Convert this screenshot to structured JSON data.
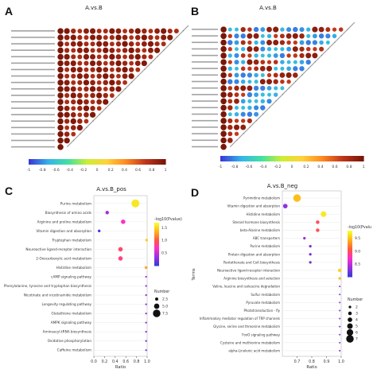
{
  "figure": {
    "panels": [
      {
        "id": "A",
        "title": "A.vs.B"
      },
      {
        "id": "B",
        "title": "A.vs.B"
      },
      {
        "id": "C",
        "title": "A.vs.B_pos"
      },
      {
        "id": "D",
        "title": "A.vs.B_neg"
      }
    ]
  },
  "chart_data": [
    {
      "panel": "A",
      "type": "heatmap",
      "title": "A.vs.B",
      "description": "triangular correlation matrix, circles; nearly all strongly positive (red)",
      "rows": 19,
      "colorbar_ticks": [
        "-1",
        "-0.8",
        "-0.6",
        "-0.4",
        "-0.2",
        "0",
        "0.2",
        "0.4",
        "0.6",
        "0.8",
        "1"
      ],
      "colorscale": [
        "#3b3bd9",
        "#35b6e8",
        "#42e0a0",
        "#ccee33",
        "#ffd23a",
        "#ff8a1f",
        "#c0361b",
        "#7a1608"
      ],
      "value_range": [
        -1,
        1
      ]
    },
    {
      "panel": "B",
      "type": "heatmap",
      "title": "A.vs.B",
      "description": "triangular correlation matrix, circles; mixed positive and negative blocks",
      "rows": 19,
      "colorbar_ticks": [
        "-1",
        "-0.8",
        "-0.6",
        "-0.4",
        "-0.2",
        "0",
        "0.2",
        "0.4",
        "0.6",
        "0.8",
        "1"
      ],
      "value_range": [
        -1,
        1
      ]
    },
    {
      "panel": "C",
      "type": "scatter",
      "title": "A.vs.B_pos",
      "xlabel": "Ratio",
      "ylabel": "",
      "xlim": [
        0,
        1
      ],
      "xticks": [
        "0.0",
        "0.2",
        "0.4",
        "0.6",
        "0.8",
        "1.0"
      ],
      "categories": [
        "Purine metabolism",
        "Biosynthesis of amino acids",
        "Arginine and proline metabolism",
        "Vitamin digestion and absorption",
        "Tryptophan metabolism",
        "Neuroactive ligand-receptor interaction",
        "2-Oxocarboxylic acid metabolism",
        "Histidine metabolism",
        "cAMP signaling pathway",
        "Phenylalanine, tyrosine and tryptophan biosynthesis",
        "Nicotinate and nicotinamide metabolism",
        "Longevity regulating pathway",
        "Glutathione metabolism",
        "AMPK signaling pathway",
        "Aminoacyl-tRNA biosynthesis",
        "Oxidative phosphorylation",
        "Caffeine metabolism"
      ],
      "points": [
        {
          "ratio": 0.78,
          "neglog10p": 1.6,
          "number": 8
        },
        {
          "ratio": 0.25,
          "neglog10p": 0.35,
          "number": 3
        },
        {
          "ratio": 0.55,
          "neglog10p": 0.7,
          "number": 4
        },
        {
          "ratio": 0.1,
          "neglog10p": 0.05,
          "number": 2
        },
        {
          "ratio": 0.99,
          "neglog10p": 1.5,
          "number": 2
        },
        {
          "ratio": 0.5,
          "neglog10p": 0.9,
          "number": 4
        },
        {
          "ratio": 0.5,
          "neglog10p": 0.85,
          "number": 4
        },
        {
          "ratio": 0.98,
          "neglog10p": 1.3,
          "number": 2
        },
        {
          "ratio": 0.98,
          "neglog10p": 0.35,
          "number": 1
        },
        {
          "ratio": 0.98,
          "neglog10p": 0.3,
          "number": 1
        },
        {
          "ratio": 0.98,
          "neglog10p": 0.3,
          "number": 1
        },
        {
          "ratio": 0.98,
          "neglog10p": 0.3,
          "number": 1
        },
        {
          "ratio": 0.98,
          "neglog10p": 0.3,
          "number": 1
        },
        {
          "ratio": 0.98,
          "neglog10p": 0.3,
          "number": 1
        },
        {
          "ratio": 0.98,
          "neglog10p": 0.3,
          "number": 1
        },
        {
          "ratio": 0.98,
          "neglog10p": 0.2,
          "number": 1
        },
        {
          "ratio": 0.98,
          "neglog10p": 0.2,
          "number": 1
        }
      ],
      "color_legend": {
        "title": "-log10(Pvalue)",
        "ticks": [
          "1.5",
          "1.0",
          "0.5"
        ],
        "range": [
          0,
          1.7
        ]
      },
      "size_legend": {
        "title": "Number",
        "ticks": [
          "2.5",
          "5.0",
          "7.5"
        ]
      }
    },
    {
      "panel": "D",
      "type": "scatter",
      "title": "A.vs.B_neg",
      "xlabel": "Ratio",
      "ylabel": "Terms",
      "xlim": [
        0.6,
        1
      ],
      "xticks": [
        "0.7",
        "0.8",
        "0.9",
        "1.0"
      ],
      "categories": [
        "Pyrimidine metabolism",
        "Vitamin digestion and absorption",
        "Histidine metabolism",
        "Steroid hormone biosynthesis",
        "beta-Alanine metabolism",
        "ABC transporters",
        "Purine metabolism",
        "Protein digestion and absorption",
        "Pantothenate and CoA biosynthesis",
        "Neuroactive ligand-receptor interaction",
        "Arginine biosynthesis and selection",
        "Valine, leucine and isoleucine degradation",
        "Sulfur metabolism",
        "Pyruvate metabolism",
        "Phototransduction - fly",
        "Inflammatory mediator regulation of TRP channels",
        "Glycine, serine and threonine metabolism",
        "FoxO signaling pathway",
        "Cysteine and methionine metabolism",
        "alpha-Linolenic acid metabolism"
      ],
      "points": [
        {
          "ratio": 0.7,
          "neglog10p": 9.5,
          "number": 7
        },
        {
          "ratio": 0.62,
          "neglog10p": 8.3,
          "number": 4
        },
        {
          "ratio": 0.88,
          "neglog10p": 9.7,
          "number": 5
        },
        {
          "ratio": 0.84,
          "neglog10p": 9.0,
          "number": 3
        },
        {
          "ratio": 0.84,
          "neglog10p": 9.0,
          "number": 3
        },
        {
          "ratio": 0.75,
          "neglog10p": 8.3,
          "number": 2
        },
        {
          "ratio": 0.79,
          "neglog10p": 8.2,
          "number": 2
        },
        {
          "ratio": 0.79,
          "neglog10p": 8.2,
          "number": 2
        },
        {
          "ratio": 0.79,
          "neglog10p": 8.2,
          "number": 2
        },
        {
          "ratio": 0.99,
          "neglog10p": 9.6,
          "number": 3
        },
        {
          "ratio": 0.99,
          "neglog10p": 9.5,
          "number": 2
        },
        {
          "ratio": 0.99,
          "neglog10p": 8.3,
          "number": 1
        },
        {
          "ratio": 0.99,
          "neglog10p": 8.3,
          "number": 1
        },
        {
          "ratio": 0.99,
          "neglog10p": 8.3,
          "number": 1
        },
        {
          "ratio": 0.99,
          "neglog10p": 8.3,
          "number": 1
        },
        {
          "ratio": 0.99,
          "neglog10p": 8.3,
          "number": 1
        },
        {
          "ratio": 0.99,
          "neglog10p": 8.3,
          "number": 1
        },
        {
          "ratio": 0.99,
          "neglog10p": 8.3,
          "number": 1
        },
        {
          "ratio": 0.99,
          "neglog10p": 8.3,
          "number": 1
        },
        {
          "ratio": 0.99,
          "neglog10p": 8.3,
          "number": 1
        }
      ],
      "color_legend": {
        "title": "-log10(Pvalu",
        "ticks": [
          "9.5",
          "9.0",
          "8.5"
        ],
        "range": [
          8.0,
          9.8
        ]
      },
      "size_legend": {
        "title": "Number",
        "ticks": [
          "2",
          "3",
          "4",
          "5",
          "6",
          "7"
        ]
      }
    }
  ]
}
